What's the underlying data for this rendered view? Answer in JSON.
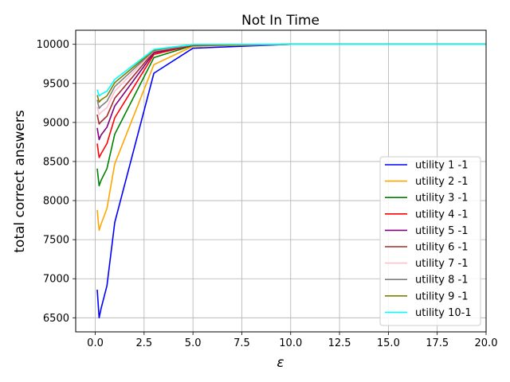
{
  "chart_data": {
    "type": "line",
    "title": "Not In Time",
    "xlabel": "ε",
    "ylabel": "total correct answers",
    "xlim": [
      -1.0,
      20.0
    ],
    "ylim": [
      6320,
      10180
    ],
    "xticks": [
      0.0,
      2.5,
      5.0,
      7.5,
      10.0,
      12.5,
      15.0,
      17.5,
      20.0
    ],
    "xtick_labels": [
      "0.0",
      "2.5",
      "5.0",
      "7.5",
      "10.0",
      "12.5",
      "15.0",
      "17.5",
      "20.0"
    ],
    "yticks": [
      6500,
      7000,
      7500,
      8000,
      8500,
      9000,
      9500,
      10000
    ],
    "ytick_labels": [
      "6500",
      "7000",
      "7500",
      "8000",
      "8500",
      "9000",
      "9500",
      "10000"
    ],
    "grid": true,
    "legend_position": "lower right",
    "x": [
      0.1,
      0.2,
      0.3,
      0.6,
      1.0,
      3.0,
      5.0,
      10.0,
      20.0
    ],
    "series": [
      {
        "name": "utility 1 -1",
        "color": "#0000ff",
        "values": [
          6860,
          6500,
          6620,
          6910,
          7720,
          9630,
          9950,
          10000,
          10000
        ]
      },
      {
        "name": "utility 2 -1",
        "color": "#ffa500",
        "values": [
          7880,
          7620,
          7700,
          7900,
          8470,
          9740,
          9975,
          10000,
          10000
        ]
      },
      {
        "name": "utility 3 -1",
        "color": "#008000",
        "values": [
          8410,
          8190,
          8260,
          8410,
          8850,
          9830,
          9985,
          10000,
          10000
        ]
      },
      {
        "name": "utility 4 -1",
        "color": "#ff0000",
        "values": [
          8730,
          8550,
          8600,
          8730,
          9060,
          9870,
          9990,
          10000,
          10000
        ]
      },
      {
        "name": "utility 5 -1",
        "color": "#800080",
        "values": [
          8930,
          8780,
          8840,
          8940,
          9210,
          9890,
          9992,
          10000,
          10000
        ]
      },
      {
        "name": "utility 6 -1",
        "color": "#a52a2a",
        "values": [
          9100,
          8980,
          9010,
          9080,
          9310,
          9905,
          9994,
          10000,
          10000
        ]
      },
      {
        "name": "utility 7 -1",
        "color": "#ffc0cb",
        "values": [
          9200,
          9100,
          9130,
          9190,
          9400,
          9915,
          9995,
          10000,
          10000
        ]
      },
      {
        "name": "utility 8 -1",
        "color": "#808080",
        "values": [
          9290,
          9180,
          9210,
          9270,
          9460,
          9920,
          9996,
          10000,
          10000
        ]
      },
      {
        "name": "utility 9 -1",
        "color": "#808000",
        "values": [
          9350,
          9260,
          9290,
          9340,
          9510,
          9925,
          9997,
          10000,
          10000
        ]
      },
      {
        "name": "utility 10-1",
        "color": "#00ffff",
        "values": [
          9420,
          9340,
          9360,
          9400,
          9550,
          9935,
          9998,
          10000,
          10000
        ]
      }
    ]
  }
}
